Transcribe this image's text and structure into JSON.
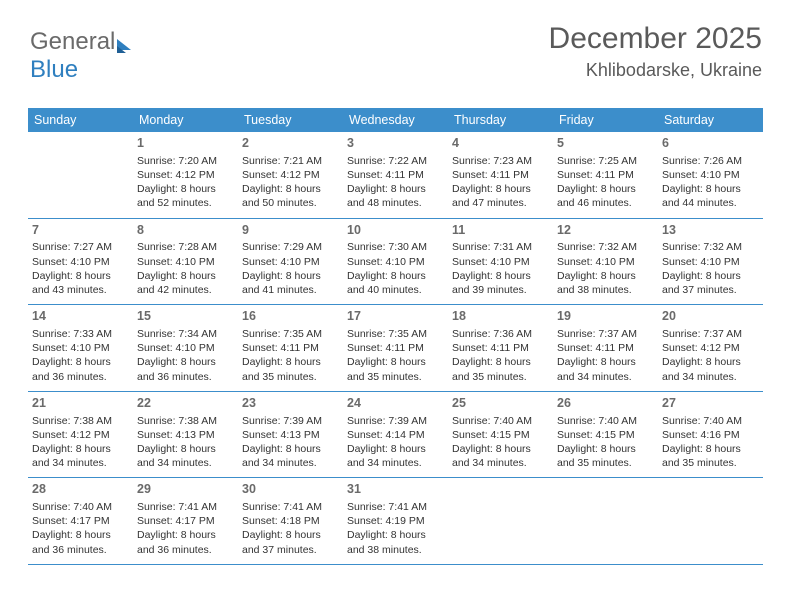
{
  "logo": {
    "part1": "General",
    "part2": "Blue"
  },
  "header": {
    "title": "December 2025",
    "location": "Khlibodarske, Ukraine"
  },
  "colors": {
    "header_bg": "#3c8ecb",
    "header_fg": "#ffffff",
    "text": "#333333",
    "muted": "#6a6a6a",
    "rule": "#3c8ecb"
  },
  "daysOfWeek": [
    "Sunday",
    "Monday",
    "Tuesday",
    "Wednesday",
    "Thursday",
    "Friday",
    "Saturday"
  ],
  "weeks": [
    [
      {
        "empty": true
      },
      {
        "num": "1",
        "sunrise": "Sunrise: 7:20 AM",
        "sunset": "Sunset: 4:12 PM",
        "dl1": "Daylight: 8 hours",
        "dl2": "and 52 minutes."
      },
      {
        "num": "2",
        "sunrise": "Sunrise: 7:21 AM",
        "sunset": "Sunset: 4:12 PM",
        "dl1": "Daylight: 8 hours",
        "dl2": "and 50 minutes."
      },
      {
        "num": "3",
        "sunrise": "Sunrise: 7:22 AM",
        "sunset": "Sunset: 4:11 PM",
        "dl1": "Daylight: 8 hours",
        "dl2": "and 48 minutes."
      },
      {
        "num": "4",
        "sunrise": "Sunrise: 7:23 AM",
        "sunset": "Sunset: 4:11 PM",
        "dl1": "Daylight: 8 hours",
        "dl2": "and 47 minutes."
      },
      {
        "num": "5",
        "sunrise": "Sunrise: 7:25 AM",
        "sunset": "Sunset: 4:11 PM",
        "dl1": "Daylight: 8 hours",
        "dl2": "and 46 minutes."
      },
      {
        "num": "6",
        "sunrise": "Sunrise: 7:26 AM",
        "sunset": "Sunset: 4:10 PM",
        "dl1": "Daylight: 8 hours",
        "dl2": "and 44 minutes."
      }
    ],
    [
      {
        "num": "7",
        "sunrise": "Sunrise: 7:27 AM",
        "sunset": "Sunset: 4:10 PM",
        "dl1": "Daylight: 8 hours",
        "dl2": "and 43 minutes."
      },
      {
        "num": "8",
        "sunrise": "Sunrise: 7:28 AM",
        "sunset": "Sunset: 4:10 PM",
        "dl1": "Daylight: 8 hours",
        "dl2": "and 42 minutes."
      },
      {
        "num": "9",
        "sunrise": "Sunrise: 7:29 AM",
        "sunset": "Sunset: 4:10 PM",
        "dl1": "Daylight: 8 hours",
        "dl2": "and 41 minutes."
      },
      {
        "num": "10",
        "sunrise": "Sunrise: 7:30 AM",
        "sunset": "Sunset: 4:10 PM",
        "dl1": "Daylight: 8 hours",
        "dl2": "and 40 minutes."
      },
      {
        "num": "11",
        "sunrise": "Sunrise: 7:31 AM",
        "sunset": "Sunset: 4:10 PM",
        "dl1": "Daylight: 8 hours",
        "dl2": "and 39 minutes."
      },
      {
        "num": "12",
        "sunrise": "Sunrise: 7:32 AM",
        "sunset": "Sunset: 4:10 PM",
        "dl1": "Daylight: 8 hours",
        "dl2": "and 38 minutes."
      },
      {
        "num": "13",
        "sunrise": "Sunrise: 7:32 AM",
        "sunset": "Sunset: 4:10 PM",
        "dl1": "Daylight: 8 hours",
        "dl2": "and 37 minutes."
      }
    ],
    [
      {
        "num": "14",
        "sunrise": "Sunrise: 7:33 AM",
        "sunset": "Sunset: 4:10 PM",
        "dl1": "Daylight: 8 hours",
        "dl2": "and 36 minutes."
      },
      {
        "num": "15",
        "sunrise": "Sunrise: 7:34 AM",
        "sunset": "Sunset: 4:10 PM",
        "dl1": "Daylight: 8 hours",
        "dl2": "and 36 minutes."
      },
      {
        "num": "16",
        "sunrise": "Sunrise: 7:35 AM",
        "sunset": "Sunset: 4:11 PM",
        "dl1": "Daylight: 8 hours",
        "dl2": "and 35 minutes."
      },
      {
        "num": "17",
        "sunrise": "Sunrise: 7:35 AM",
        "sunset": "Sunset: 4:11 PM",
        "dl1": "Daylight: 8 hours",
        "dl2": "and 35 minutes."
      },
      {
        "num": "18",
        "sunrise": "Sunrise: 7:36 AM",
        "sunset": "Sunset: 4:11 PM",
        "dl1": "Daylight: 8 hours",
        "dl2": "and 35 minutes."
      },
      {
        "num": "19",
        "sunrise": "Sunrise: 7:37 AM",
        "sunset": "Sunset: 4:11 PM",
        "dl1": "Daylight: 8 hours",
        "dl2": "and 34 minutes."
      },
      {
        "num": "20",
        "sunrise": "Sunrise: 7:37 AM",
        "sunset": "Sunset: 4:12 PM",
        "dl1": "Daylight: 8 hours",
        "dl2": "and 34 minutes."
      }
    ],
    [
      {
        "num": "21",
        "sunrise": "Sunrise: 7:38 AM",
        "sunset": "Sunset: 4:12 PM",
        "dl1": "Daylight: 8 hours",
        "dl2": "and 34 minutes."
      },
      {
        "num": "22",
        "sunrise": "Sunrise: 7:38 AM",
        "sunset": "Sunset: 4:13 PM",
        "dl1": "Daylight: 8 hours",
        "dl2": "and 34 minutes."
      },
      {
        "num": "23",
        "sunrise": "Sunrise: 7:39 AM",
        "sunset": "Sunset: 4:13 PM",
        "dl1": "Daylight: 8 hours",
        "dl2": "and 34 minutes."
      },
      {
        "num": "24",
        "sunrise": "Sunrise: 7:39 AM",
        "sunset": "Sunset: 4:14 PM",
        "dl1": "Daylight: 8 hours",
        "dl2": "and 34 minutes."
      },
      {
        "num": "25",
        "sunrise": "Sunrise: 7:40 AM",
        "sunset": "Sunset: 4:15 PM",
        "dl1": "Daylight: 8 hours",
        "dl2": "and 34 minutes."
      },
      {
        "num": "26",
        "sunrise": "Sunrise: 7:40 AM",
        "sunset": "Sunset: 4:15 PM",
        "dl1": "Daylight: 8 hours",
        "dl2": "and 35 minutes."
      },
      {
        "num": "27",
        "sunrise": "Sunrise: 7:40 AM",
        "sunset": "Sunset: 4:16 PM",
        "dl1": "Daylight: 8 hours",
        "dl2": "and 35 minutes."
      }
    ],
    [
      {
        "num": "28",
        "sunrise": "Sunrise: 7:40 AM",
        "sunset": "Sunset: 4:17 PM",
        "dl1": "Daylight: 8 hours",
        "dl2": "and 36 minutes."
      },
      {
        "num": "29",
        "sunrise": "Sunrise: 7:41 AM",
        "sunset": "Sunset: 4:17 PM",
        "dl1": "Daylight: 8 hours",
        "dl2": "and 36 minutes."
      },
      {
        "num": "30",
        "sunrise": "Sunrise: 7:41 AM",
        "sunset": "Sunset: 4:18 PM",
        "dl1": "Daylight: 8 hours",
        "dl2": "and 37 minutes."
      },
      {
        "num": "31",
        "sunrise": "Sunrise: 7:41 AM",
        "sunset": "Sunset: 4:19 PM",
        "dl1": "Daylight: 8 hours",
        "dl2": "and 38 minutes."
      },
      {
        "empty": true
      },
      {
        "empty": true
      },
      {
        "empty": true
      }
    ]
  ]
}
